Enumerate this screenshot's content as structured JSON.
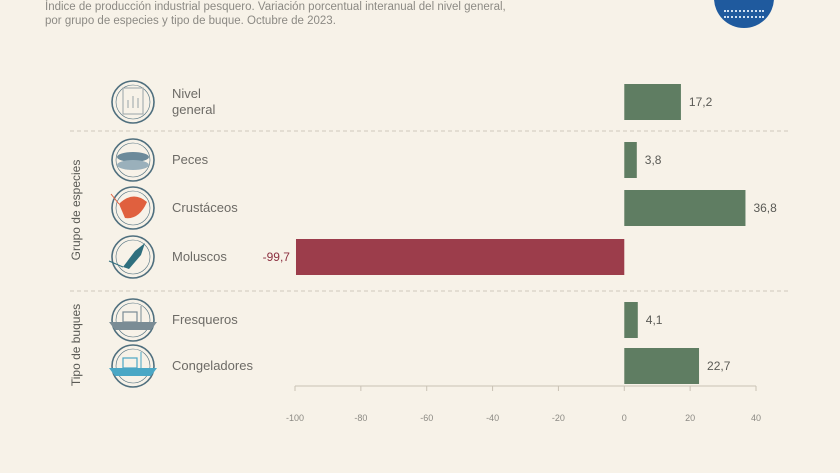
{
  "header": {
    "subtitle_line1": "Índice de producción industrial pesquero. Variación porcentual interanual del nivel general,",
    "subtitle_line2": "por grupo de especies y tipo de buque. Octubre de 2023."
  },
  "colors": {
    "positive": "#5f7d62",
    "negative": "#9c3d4b",
    "icon_circle": "#4f6f7e",
    "shrimp": "#e0603e",
    "squid": "#2f6f7e",
    "fish": "#6c8a9a",
    "boat_white": "#7a8c95",
    "boat_blue": "#4aa7c5"
  },
  "chart_data": {
    "type": "bar",
    "orientation": "horizontal",
    "title": "",
    "xlabel": "",
    "ylabel": "",
    "xlim": [
      -100,
      40
    ],
    "xticks": [
      "-100",
      "-80",
      "-60",
      "-40",
      "-20",
      "0",
      "20",
      "40"
    ],
    "categories": [
      "Nivel general",
      "Peces",
      "Crustáceos",
      "Moluscos",
      "Fresqueros",
      "Congeladores"
    ],
    "values": [
      17.2,
      3.8,
      36.8,
      -99.7,
      4.1,
      22.7
    ],
    "value_labels": [
      "17,2",
      "3,8",
      "36,8",
      "-99,7",
      "4,1",
      "22,7"
    ],
    "groups": [
      {
        "name": "Grupo de especies",
        "categories": [
          "Peces",
          "Crustáceos",
          "Moluscos"
        ]
      },
      {
        "name": "Tipo de buques",
        "categories": [
          "Fresqueros",
          "Congeladores"
        ]
      }
    ],
    "icons": [
      "report-icon",
      "fish-icon",
      "shrimp-icon",
      "squid-icon",
      "fresh-boat-icon",
      "freezer-boat-icon"
    ],
    "grid": false
  }
}
